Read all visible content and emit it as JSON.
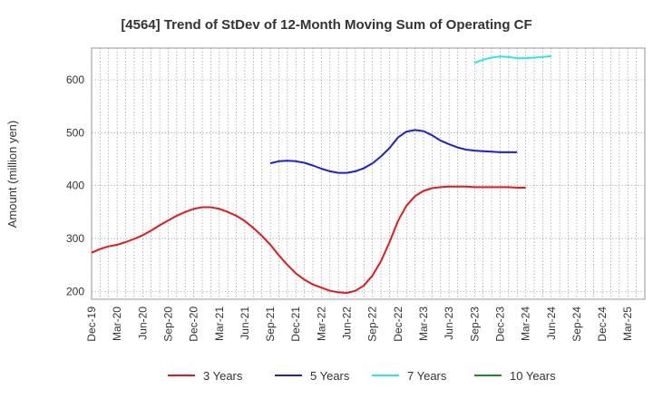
{
  "chart_data": {
    "type": "line",
    "title": "[4564]  Trend of StDev of 12-Month Moving Sum of Operating CF",
    "xlabel": "",
    "ylabel": "Amount (million yen)",
    "ylim": [
      185,
      660
    ],
    "yticks": [
      200,
      300,
      400,
      500,
      600
    ],
    "x_ticks": [
      "Dec-19",
      "Mar-20",
      "Jun-20",
      "Sep-20",
      "Dec-20",
      "Mar-21",
      "Jun-21",
      "Sep-21",
      "Dec-21",
      "Mar-22",
      "Jun-22",
      "Sep-22",
      "Dec-22",
      "Mar-23",
      "Jun-23",
      "Sep-23",
      "Dec-23",
      "Mar-24",
      "Jun-24",
      "Sep-24",
      "Dec-24",
      "Mar-25"
    ],
    "grid": true,
    "legend_position": "bottom",
    "series": [
      {
        "name": "3 Years",
        "color": "#e31a1c",
        "x_start": 0,
        "values": [
          273,
          280,
          285,
          288,
          293,
          299,
          306,
          315,
          325,
          334,
          343,
          350,
          356,
          359,
          359,
          356,
          350,
          343,
          333,
          320,
          305,
          288,
          268,
          250,
          234,
          222,
          213,
          207,
          201,
          198,
          197,
          201,
          211,
          230,
          257,
          293,
          333,
          362,
          380,
          390,
          395,
          397,
          398,
          398,
          398,
          397,
          397,
          397,
          397,
          397,
          396,
          396
        ]
      },
      {
        "name": "5 Years",
        "color": "#1f1fcc",
        "x_start": 21,
        "values": [
          442,
          446,
          447,
          446,
          443,
          438,
          432,
          427,
          424,
          424,
          427,
          433,
          442,
          455,
          471,
          491,
          502,
          505,
          503,
          495,
          485,
          478,
          472,
          468,
          466,
          465,
          464,
          463,
          463,
          463
        ]
      },
      {
        "name": "7 Years",
        "color": "#2be6f0",
        "x_start": 45,
        "values": [
          632,
          638,
          642,
          644,
          643,
          641,
          641,
          642,
          643,
          645
        ]
      },
      {
        "name": "10 Years",
        "color": "#1e8b1e",
        "x_start": 0,
        "values": []
      }
    ]
  }
}
